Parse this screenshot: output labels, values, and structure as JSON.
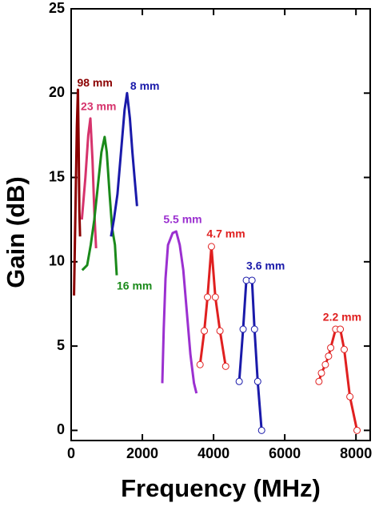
{
  "chart_data": {
    "type": "line",
    "xlabel": "Frequency (MHz)",
    "ylabel": "Gain (dB)",
    "xlim": [
      0,
      8400
    ],
    "ylim": [
      -0.6,
      25
    ],
    "xticks": [
      0,
      2000,
      4000,
      6000,
      8000
    ],
    "yticks": [
      0,
      5,
      10,
      15,
      20,
      25
    ],
    "series": [
      {
        "name": "98 mm",
        "color": "#8b0000",
        "markers": false,
        "x": [
          80,
          120,
          160,
          190,
          210,
          230,
          250
        ],
        "values": [
          8,
          13,
          18,
          20.2,
          17,
          13,
          11.5
        ]
      },
      {
        "name": "23 mm",
        "color": "#d6336c",
        "markers": false,
        "x": [
          300,
          400,
          480,
          540,
          600,
          650,
          700
        ],
        "values": [
          12.5,
          15,
          17.5,
          18.5,
          16,
          13,
          10.8
        ]
      },
      {
        "name": "16 mm",
        "color": "#1a8a1a",
        "markers": false,
        "x": [
          310,
          450,
          550,
          650,
          750,
          850,
          940,
          1000,
          1080,
          1150,
          1230,
          1280
        ],
        "values": [
          9.5,
          9.8,
          11,
          12.5,
          14.5,
          16.5,
          17.4,
          16.5,
          14,
          12,
          11,
          9.2
        ]
      },
      {
        "name": "8 mm",
        "color": "#1a1aaa",
        "markers": false,
        "x": [
          1120,
          1200,
          1300,
          1400,
          1500,
          1570,
          1650,
          1720,
          1780,
          1850
        ],
        "values": [
          11.5,
          12.5,
          14,
          16.5,
          19,
          20,
          18.5,
          16.5,
          15,
          13.3
        ]
      },
      {
        "name": "5.5 mm",
        "color": "#9b30d0",
        "markers": false,
        "x": [
          2560,
          2600,
          2650,
          2720,
          2850,
          2950,
          3050,
          3150,
          3250,
          3350,
          3450,
          3520
        ],
        "values": [
          2.8,
          6,
          9,
          11,
          11.7,
          11.8,
          11,
          9.5,
          7,
          4.5,
          2.8,
          2.2
        ]
      },
      {
        "name": "4.7 mm",
        "color": "#e02020",
        "markers": true,
        "x": [
          3620,
          3740,
          3830,
          3940,
          4050,
          4180,
          4340
        ],
        "values": [
          3.9,
          5.9,
          7.9,
          10.9,
          7.9,
          5.9,
          3.8
        ]
      },
      {
        "name": "3.6 mm",
        "color": "#1a1aaa",
        "markers": true,
        "x": [
          4720,
          4830,
          4920,
          5080,
          5150,
          5240,
          5350
        ],
        "values": [
          2.9,
          6.0,
          8.9,
          8.9,
          6.0,
          2.9,
          0
        ]
      },
      {
        "name": "2.2 mm",
        "color": "#e02020",
        "markers": true,
        "x": [
          6960,
          7030,
          7140,
          7230,
          7290,
          7430,
          7560,
          7670,
          7830,
          8030
        ],
        "values": [
          2.9,
          3.4,
          3.9,
          4.4,
          4.9,
          6.0,
          6.0,
          4.8,
          2.0,
          0
        ]
      }
    ]
  }
}
